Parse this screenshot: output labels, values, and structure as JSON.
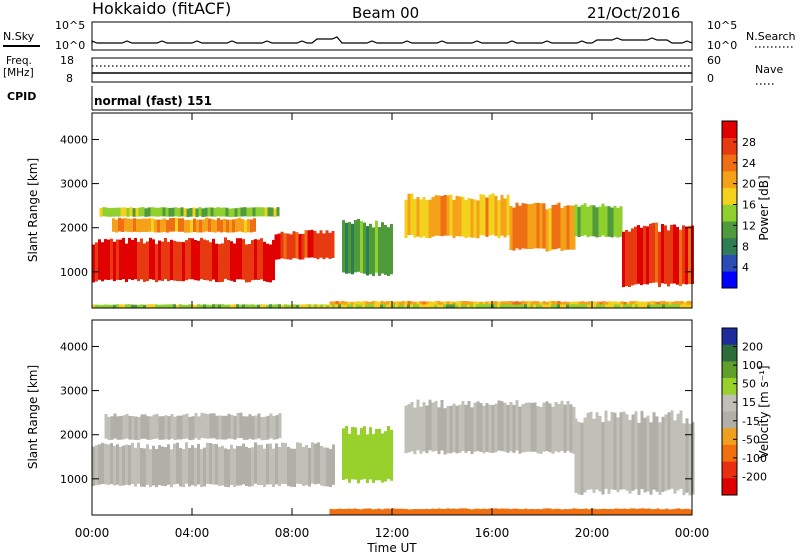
{
  "header": {
    "station": "Hokkaido (fitACF)",
    "beam": "Beam 00",
    "date": "21/Oct/2016"
  },
  "noise_panel": {
    "left_label": "N.Sky",
    "right_label": "N.Search",
    "left_ticks": [
      "10^5",
      "10^0"
    ],
    "right_ticks": [
      "10^5",
      "10^0"
    ]
  },
  "freq_panel": {
    "left_label_line1": "Freq.",
    "left_label_line2": "[MHz]",
    "left_ticks": [
      "18",
      "8"
    ],
    "right_ticks": [
      "60",
      "0"
    ],
    "right_label": "Nave"
  },
  "cpid_panel": {
    "label": "CPID",
    "text": "normal (fast) 151"
  },
  "colors": {
    "power_scale": [
      "#0000ff",
      "#2a4cb4",
      "#2f7d55",
      "#4f9a3a",
      "#8fcf2e",
      "#f2d21d",
      "#f5a21a",
      "#ef6f15",
      "#e83a10",
      "#e00000"
    ],
    "velocity_scale": [
      "#1c2c9c",
      "#2f6c3c",
      "#5ea02a",
      "#99d12c",
      "#c0c0b8",
      "#b0b0a8",
      "#f0a020",
      "#f07010",
      "#e83010",
      "#dd0000"
    ]
  },
  "chart_data": [
    {
      "type": "heatmap",
      "name": "power",
      "ylabel": "Slant Range [km]",
      "xlabel": "",
      "x_ticks": [
        "00:00",
        "04:00",
        "08:00",
        "12:00",
        "16:00",
        "20:00",
        "00:00"
      ],
      "y_ticks": [
        1000,
        2000,
        3000,
        4000
      ],
      "ylim": [
        180,
        4600
      ],
      "xlim_hours": [
        0,
        24
      ],
      "colorbar_label": "Power [dB]",
      "colorbar_ticks": [
        4,
        8,
        12,
        16,
        20,
        24,
        28
      ],
      "colorbar_range": [
        0,
        32
      ],
      "bands": [
        {
          "x": [
            0,
            7.3
          ],
          "y": [
            800,
            1700
          ],
          "value": 29
        },
        {
          "x": [
            7.3,
            9.7
          ],
          "y": [
            1300,
            1900
          ],
          "value": 27
        },
        {
          "x": [
            0.8,
            6.5
          ],
          "y": [
            1900,
            2200
          ],
          "value": 22
        },
        {
          "x": [
            0.3,
            7.5
          ],
          "y": [
            2250,
            2450
          ],
          "value": 14
        },
        {
          "x": [
            12.5,
            16.7
          ],
          "y": [
            1800,
            2700
          ],
          "value": 20
        },
        {
          "x": [
            16.7,
            19.3
          ],
          "y": [
            1500,
            2500
          ],
          "value": 22
        },
        {
          "x": [
            19.3,
            21.2
          ],
          "y": [
            1800,
            2500
          ],
          "value": 14
        },
        {
          "x": [
            21.2,
            24
          ],
          "y": [
            700,
            2000
          ],
          "value": 28
        },
        {
          "x": [
            10,
            12
          ],
          "y": [
            950,
            2100
          ],
          "value": 11
        },
        {
          "x": [
            9.5,
            24
          ],
          "y": [
            200,
            330
          ],
          "value": 20
        },
        {
          "x": [
            0,
            24
          ],
          "y": [
            180,
            260
          ],
          "value": 15
        }
      ]
    },
    {
      "type": "heatmap",
      "name": "velocity",
      "ylabel": "Slant Range [km]",
      "xlabel": "Time UT",
      "x_ticks": [
        "00:00",
        "04:00",
        "08:00",
        "12:00",
        "16:00",
        "20:00",
        "00:00"
      ],
      "y_ticks": [
        1000,
        2000,
        3000,
        4000
      ],
      "ylim": [
        180,
        4600
      ],
      "xlim_hours": [
        0,
        24
      ],
      "colorbar_label": "Velocity [m s⁻¹]",
      "colorbar_ticks": [
        200,
        100,
        50,
        15,
        -15,
        -50,
        -100,
        -200
      ],
      "bands": [
        {
          "x": [
            0,
            9.7
          ],
          "y": [
            850,
            1750
          ],
          "value": 0
        },
        {
          "x": [
            0.5,
            7.5
          ],
          "y": [
            1900,
            2450
          ],
          "value": 0
        },
        {
          "x": [
            12.5,
            19.3
          ],
          "y": [
            1600,
            2700
          ],
          "value": 0
        },
        {
          "x": [
            19.3,
            24
          ],
          "y": [
            700,
            2400
          ],
          "value": 0
        },
        {
          "x": [
            10,
            12
          ],
          "y": [
            950,
            2100
          ],
          "value": 40
        },
        {
          "x": [
            9.5,
            24
          ],
          "y": [
            180,
            320
          ],
          "value": -60
        }
      ]
    }
  ]
}
